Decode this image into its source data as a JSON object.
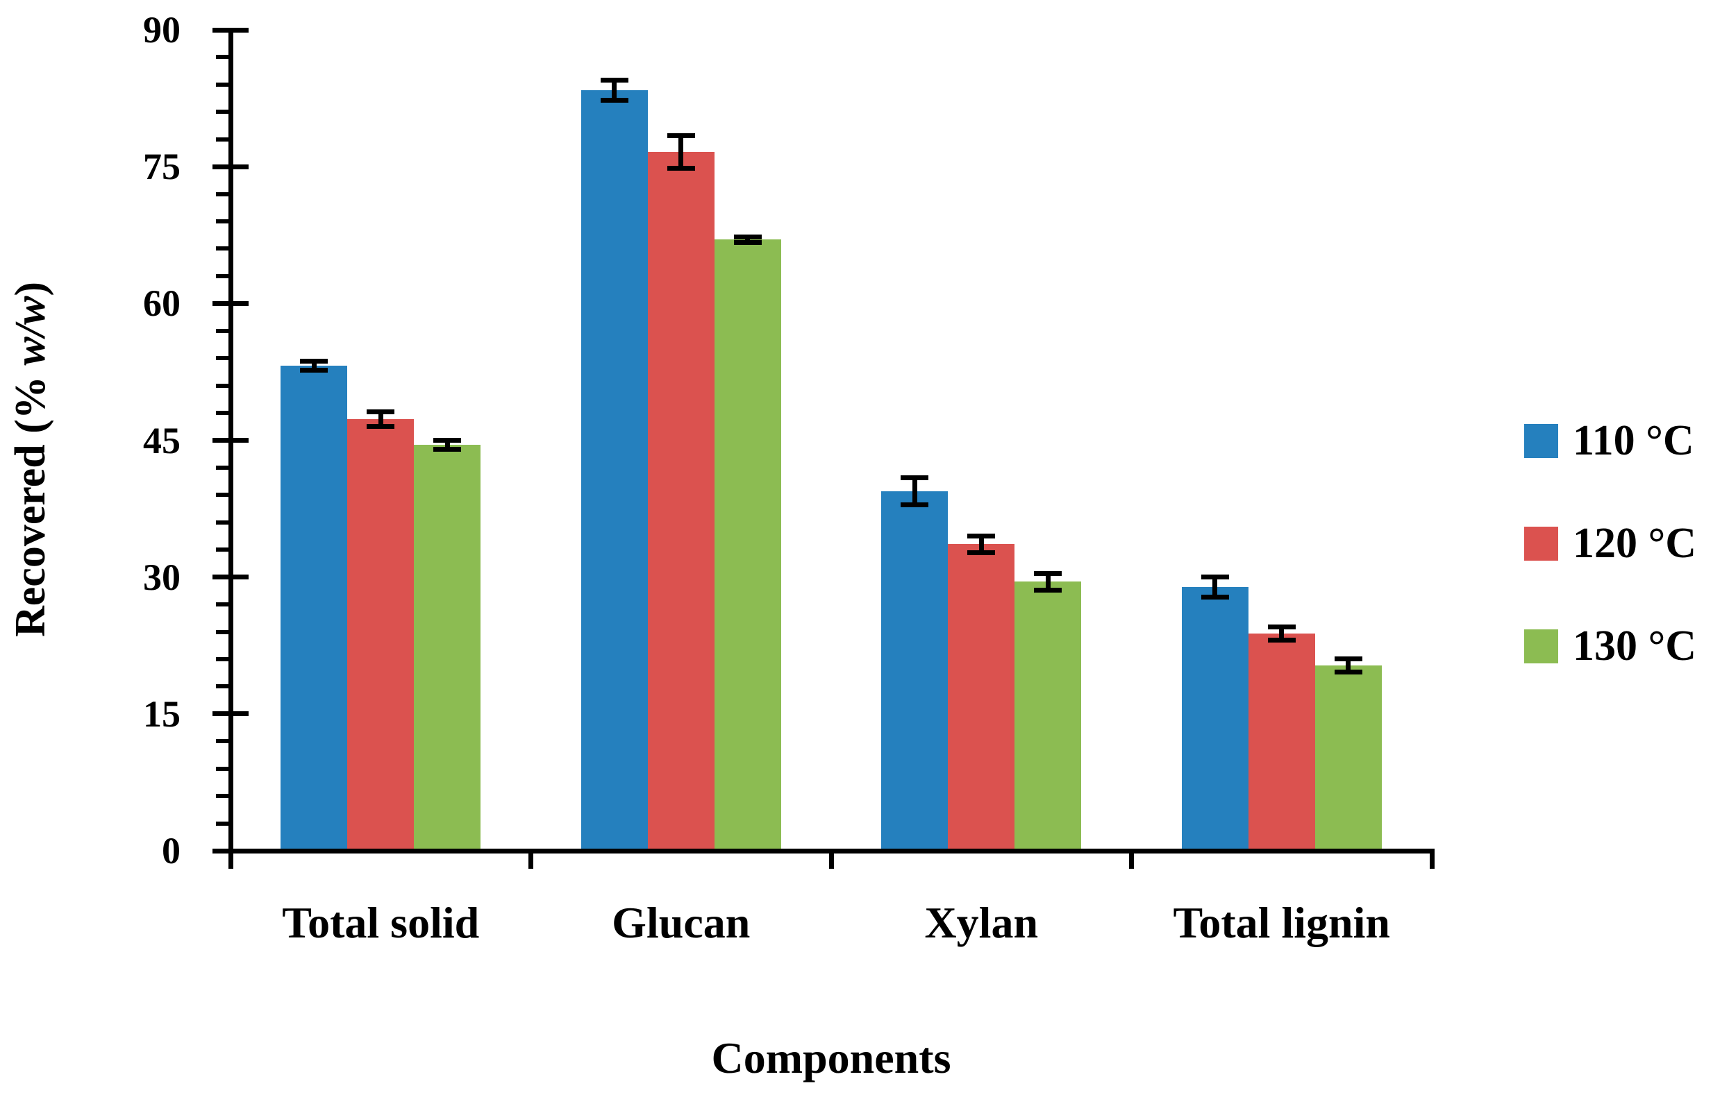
{
  "labels": {
    "y_prefix": "Recovered (% ",
    "y_italic": "w/w",
    "y_suffix": ")"
  },
  "chart_data": {
    "type": "bar",
    "title": "",
    "xlabel": "Components",
    "ylabel": "Recovered (% w/w)",
    "ylim": [
      0,
      90
    ],
    "yticks": [
      0,
      15,
      30,
      45,
      60,
      75,
      90
    ],
    "minor_tick_step": 3,
    "grid": false,
    "legend_position": "right",
    "error_bars": true,
    "axis_color": "#000000",
    "background_color": "#ffffff",
    "categories": [
      "Total solid",
      "Glucan",
      "Xylan",
      "Total lignin"
    ],
    "series": [
      {
        "name": "110 °C",
        "color": "#2580BE",
        "values": [
          53.2,
          83.4,
          39.4,
          28.9
        ],
        "errors": [
          0.5,
          1.1,
          1.5,
          1.1
        ]
      },
      {
        "name": "120 °C",
        "color": "#DB524F",
        "values": [
          47.3,
          76.6,
          33.6,
          23.8
        ],
        "errors": [
          0.8,
          1.8,
          0.9,
          0.7
        ]
      },
      {
        "name": "130 °C",
        "color": "#8CBC52",
        "values": [
          44.5,
          67.0,
          29.5,
          20.3
        ],
        "errors": [
          0.5,
          0.3,
          0.9,
          0.7
        ]
      }
    ]
  }
}
